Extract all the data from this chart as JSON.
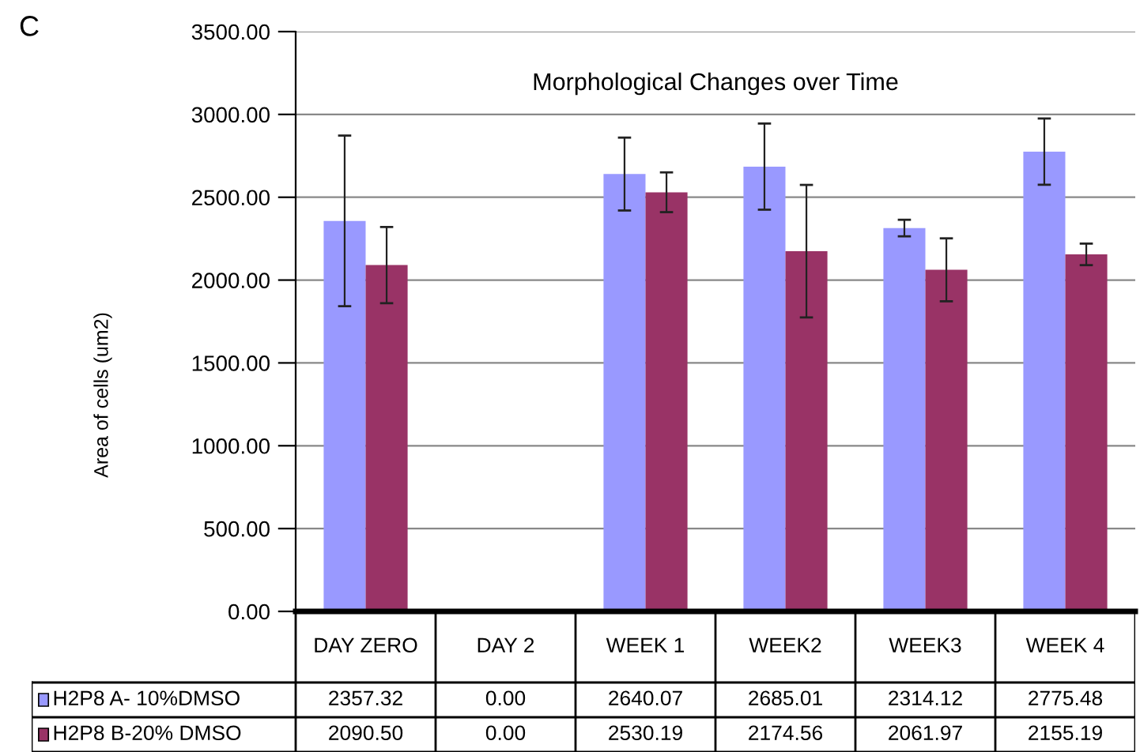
{
  "chart_data": {
    "type": "bar",
    "title": "Morphological Changes over Time",
    "ylabel": "Area of cells (um2)",
    "annotations": [
      "C"
    ],
    "categories": [
      "DAY ZERO",
      "DAY 2",
      "WEEK 1",
      "WEEK2",
      "WEEK3",
      "WEEK 4"
    ],
    "series": [
      {
        "name": "H2P8 A- 10%DMSO",
        "color": "#9999ff",
        "values": [
          2357.32,
          0.0,
          2640.07,
          2685.01,
          2314.12,
          2775.48
        ],
        "value_labels": [
          "2357.32",
          "0.00",
          "2640.07",
          "2685.01",
          "2314.12",
          "2775.48"
        ],
        "errors": [
          515,
          null,
          220,
          260,
          50,
          200
        ]
      },
      {
        "name": "H2P8 B-20% DMSO",
        "color": "#993366",
        "values": [
          2090.5,
          0.0,
          2530.19,
          2174.56,
          2061.97,
          2155.19
        ],
        "value_labels": [
          "2090.50",
          "0.00",
          "2530.19",
          "2174.56",
          "2061.97",
          "2155.19"
        ],
        "errors": [
          230,
          null,
          120,
          400,
          190,
          65
        ]
      }
    ],
    "ylim": [
      0,
      3500
    ],
    "yticks": [
      {
        "value": 0,
        "label": "0.00"
      },
      {
        "value": 500,
        "label": "500.00"
      },
      {
        "value": 1000,
        "label": "1000.00"
      },
      {
        "value": 1500,
        "label": "1500.00"
      },
      {
        "value": 2000,
        "label": "2000.00"
      },
      {
        "value": 2500,
        "label": "2500.00"
      },
      {
        "value": 3000,
        "label": "3000.00"
      },
      {
        "value": 3500,
        "label": "3500.00"
      }
    ],
    "grid": "y",
    "legend": "bottom"
  }
}
